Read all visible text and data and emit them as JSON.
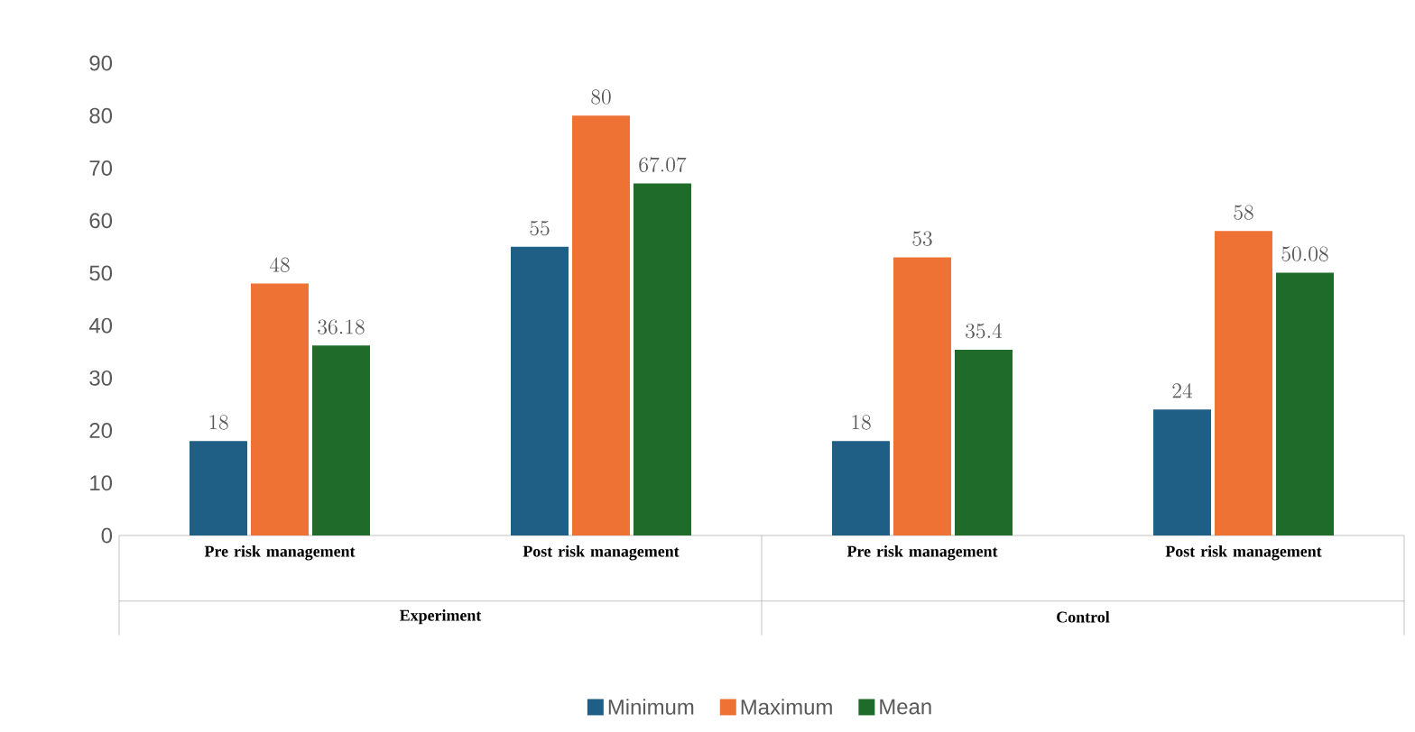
{
  "chart_data": {
    "type": "bar",
    "categories": [
      "Pre risk management",
      "Post risk management",
      "Pre risk management",
      "Post risk management"
    ],
    "series": [
      {
        "name": "Minimum",
        "color": "#1f5f85",
        "values": [
          18,
          55,
          18,
          24
        ]
      },
      {
        "name": "Maximum",
        "color": "#ed7233",
        "values": [
          48,
          80,
          53,
          58
        ]
      },
      {
        "name": "Mean",
        "color": "#1e6b2a",
        "values": [
          36.18,
          67.07,
          35.4,
          50.08
        ]
      }
    ],
    "annotations": [
      "Experiment",
      "Control"
    ],
    "ylim": [
      0,
      90
    ],
    "yticks": [
      0,
      10,
      20,
      30,
      40,
      50,
      60,
      70,
      80,
      90
    ],
    "grid": false,
    "legend": "bottom",
    "data_labels": true
  }
}
